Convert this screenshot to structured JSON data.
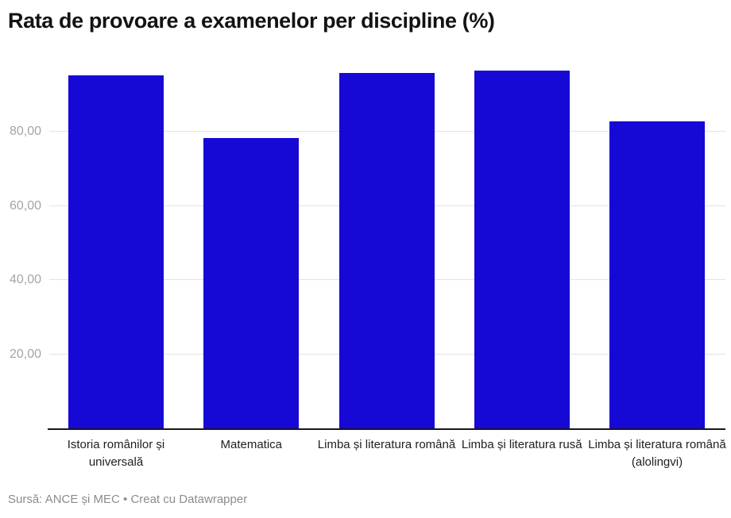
{
  "title": "Rata de provoare a examenelor per discipline (%)",
  "footer": {
    "attribution": "Sursă: ANCE și MEC • Creat cu Datawrapper"
  },
  "colors": {
    "bar": "#1608d5",
    "grid": "#e3e3e3",
    "axis": "#17171c",
    "ytick_label": "#a5a5a5",
    "xlabel": "#202022",
    "title": "#131316",
    "footer": "#8c8c8c",
    "background": "#ffffff"
  },
  "chart_data": {
    "type": "bar",
    "title": "Rata de provoare a examenelor per discipline (%)",
    "categories": [
      "Istoria românilor și universală",
      "Matematica",
      "Limba și literatura română",
      "Limba și literatura rusă",
      "Limba și literatura română (alolingvi)"
    ],
    "values": [
      95.2,
      78.2,
      95.8,
      96.5,
      82.7
    ],
    "y_ticks": [
      "20,00",
      "40,00",
      "60,00",
      "80,00"
    ],
    "y_tick_values": [
      20,
      40,
      60,
      80
    ],
    "ylim": [
      0,
      98.4
    ],
    "xlabel": "",
    "ylabel": "",
    "grid": "horizontal",
    "legend": "none",
    "source_note": "Sursă: ANCE și MEC • Creat cu Datawrapper"
  }
}
